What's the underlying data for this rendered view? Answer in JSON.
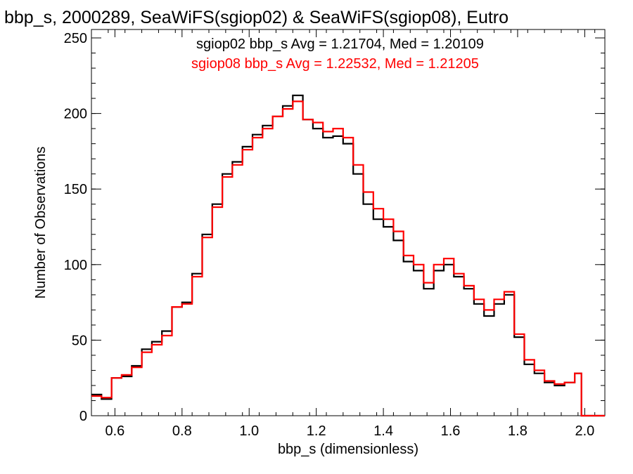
{
  "chart_data": {
    "type": "line",
    "title": "bbp_s, 2000289, SeaWiFS(sgiop02) & SeaWiFS(sgiop08), Eutro",
    "xlabel": "bbp_s (dimensionless)",
    "ylabel": "Number of Observations",
    "xlim": [
      0.53,
      2.06
    ],
    "ylim": [
      0,
      250
    ],
    "x_ticks": [
      "0.6",
      "0.8",
      "1.0",
      "1.2",
      "1.4",
      "1.6",
      "1.8",
      "2.0"
    ],
    "y_ticks": [
      "0",
      "50",
      "100",
      "150",
      "200",
      "250"
    ],
    "grid": false,
    "legend_position": "top-right",
    "annotations": [
      {
        "text": "sgiop02 bbp_s Avg = 1.21704, Med = 1.20109",
        "color": "#000000"
      },
      {
        "text": "sgiop08 bbp_s Avg = 1.22532, Med = 1.21205",
        "color": "#ff0000"
      }
    ],
    "x": [
      0.53,
      0.56,
      0.59,
      0.62,
      0.65,
      0.68,
      0.71,
      0.74,
      0.77,
      0.8,
      0.83,
      0.86,
      0.89,
      0.92,
      0.95,
      0.98,
      1.01,
      1.04,
      1.07,
      1.1,
      1.13,
      1.16,
      1.19,
      1.22,
      1.25,
      1.28,
      1.31,
      1.34,
      1.37,
      1.4,
      1.43,
      1.46,
      1.49,
      1.52,
      1.55,
      1.58,
      1.61,
      1.64,
      1.67,
      1.7,
      1.73,
      1.76,
      1.79,
      1.82,
      1.85,
      1.88,
      1.91,
      1.94,
      1.97,
      1.99,
      2.0,
      2.06
    ],
    "series": [
      {
        "name": "sgiop02",
        "color": "#000000",
        "values": [
          14,
          11,
          25,
          26,
          33,
          44,
          49,
          56,
          72,
          75,
          94,
          120,
          140,
          160,
          168,
          178,
          186,
          192,
          198,
          205,
          212,
          196,
          190,
          184,
          185,
          180,
          160,
          140,
          130,
          125,
          116,
          102,
          96,
          84,
          96,
          100,
          92,
          84,
          74,
          66,
          74,
          80,
          52,
          34,
          28,
          22,
          20,
          22,
          28,
          0,
          0,
          0
        ]
      },
      {
        "name": "sgiop08",
        "color": "#ff0000",
        "values": [
          13,
          12,
          25,
          27,
          32,
          42,
          47,
          53,
          72,
          74,
          92,
          118,
          138,
          158,
          166,
          176,
          184,
          190,
          198,
          203,
          208,
          196,
          194,
          188,
          190,
          184,
          166,
          148,
          137,
          130,
          122,
          106,
          100,
          88,
          100,
          104,
          94,
          86,
          77,
          70,
          77,
          82,
          54,
          37,
          30,
          23,
          21,
          22,
          28,
          0,
          0,
          0
        ]
      }
    ]
  }
}
